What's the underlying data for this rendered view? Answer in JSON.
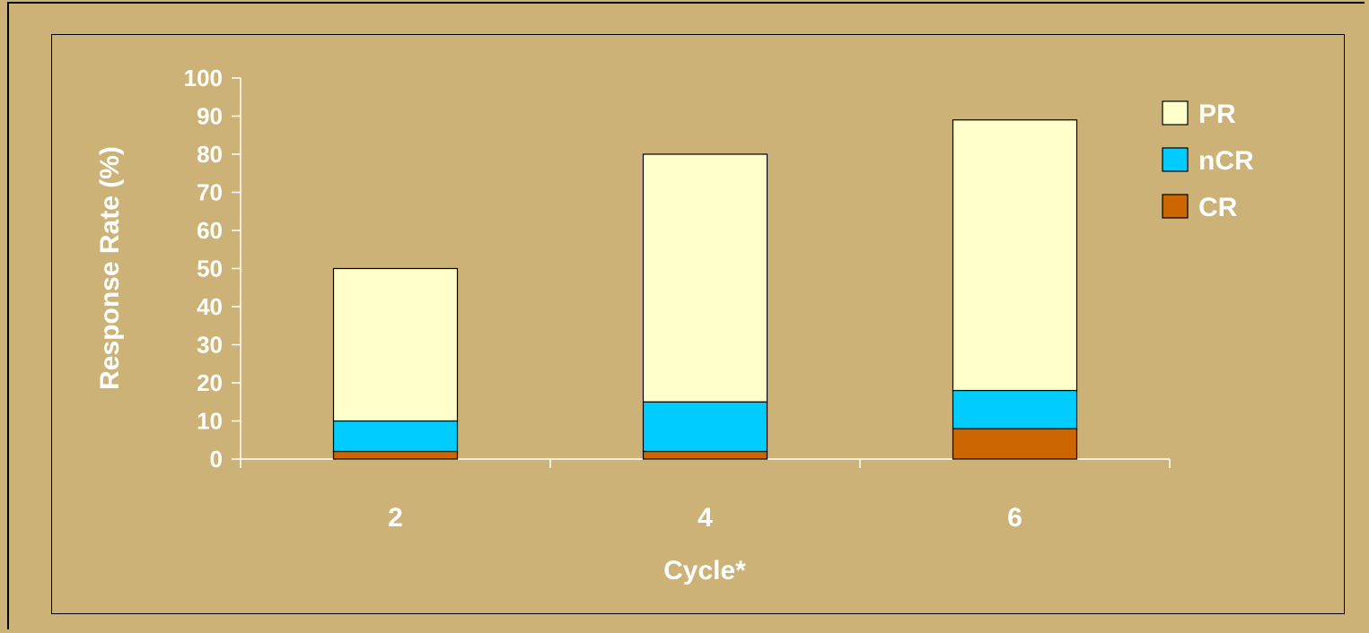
{
  "chart_data": {
    "type": "bar",
    "stacked": true,
    "categories": [
      "2",
      "4",
      "6"
    ],
    "series": [
      {
        "name": "CR",
        "values": [
          2,
          2,
          8
        ],
        "color": "#cc6600"
      },
      {
        "name": "nCR",
        "values": [
          8,
          13,
          10
        ],
        "color": "#00ccff"
      },
      {
        "name": "PR",
        "values": [
          40,
          65,
          71
        ],
        "color": "#ffffcc"
      }
    ],
    "xlabel": "Cycle*",
    "ylabel": "Response Rate (%)",
    "ylim": [
      0,
      100
    ],
    "yticks": [
      "0",
      "10",
      "20",
      "30",
      "40",
      "50",
      "60",
      "70",
      "80",
      "90",
      "100"
    ],
    "legend_order": [
      "PR",
      "nCR",
      "CR"
    ],
    "legend_position": "top-right",
    "grid": false,
    "background_color": "#ccb276"
  }
}
